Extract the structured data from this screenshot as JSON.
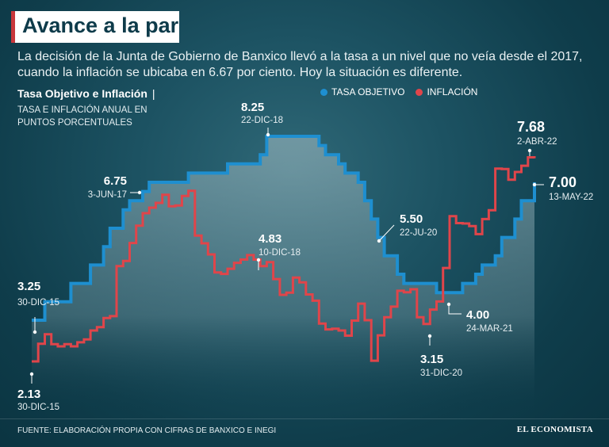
{
  "header": {
    "title": "Avance a la par",
    "subtitle": "La decisión de la Junta de Gobierno de Banxico llevó a la tasa a un nivel que no veía desde el 2017, cuando la inflación se ubicaba en 6.67 por ciento. Hoy la situación es diferente."
  },
  "chart_header": {
    "title": "Tasa Objetivo e Inflación",
    "separator": "|",
    "subtitle": "TASA E INFLACIÓN ANUAL EN PUNTOS PORCENTUALES"
  },
  "legend": {
    "tasa": "TASA OBJETIVO",
    "inflacion": "INFLACIÓN"
  },
  "colors": {
    "tasa": "#1e8fd0",
    "inflacion": "#e0454a",
    "area": "#9fb9c0",
    "brand_accent": "#c8363b"
  },
  "footer": {
    "source": "FUENTE: ELABORACIÓN PROPIA CON CIFRAS DE BANXICO E INEGI",
    "brand": "EL ECONOMISTA"
  },
  "chart_data": {
    "type": "line",
    "title": "Tasa Objetivo e Inflación",
    "xlabel": "",
    "ylabel": "Puntos porcentuales",
    "x_range": [
      "2015-12",
      "2022-05"
    ],
    "ylim": [
      1.5,
      9
    ],
    "grid": false,
    "series": [
      {
        "name": "TASA OBJETIVO",
        "style": "step-area",
        "x": [
          "2015-12",
          "2016-02",
          "2016-06",
          "2016-07",
          "2016-09",
          "2016-11",
          "2016-12",
          "2017-02",
          "2017-03",
          "2017-05",
          "2017-06",
          "2017-12",
          "2018-06",
          "2018-11",
          "2018-12",
          "2019-08",
          "2019-09",
          "2019-10",
          "2019-11",
          "2019-12",
          "2020-02",
          "2020-03",
          "2020-04",
          "2020-05",
          "2020-06",
          "2020-08",
          "2020-09",
          "2020-10",
          "2021-02",
          "2021-03",
          "2021-06",
          "2021-08",
          "2021-09",
          "2021-11",
          "2021-12",
          "2022-02",
          "2022-03",
          "2022-05"
        ],
        "values": [
          3.25,
          3.75,
          4.25,
          4.25,
          4.75,
          5.25,
          5.75,
          6.25,
          6.5,
          6.75,
          7.0,
          7.25,
          7.5,
          7.75,
          8.25,
          8.0,
          7.75,
          7.75,
          7.5,
          7.25,
          7.0,
          6.5,
          6.0,
          5.5,
          5.0,
          4.5,
          4.25,
          4.25,
          4.0,
          4.0,
          4.25,
          4.5,
          4.75,
          5.0,
          5.5,
          6.0,
          6.5,
          7.0
        ]
      },
      {
        "name": "INFLACIÓN",
        "style": "step-line",
        "x": [
          "2015-12",
          "2016-01",
          "2016-02",
          "2016-03",
          "2016-04",
          "2016-05",
          "2016-06",
          "2016-07",
          "2016-08",
          "2016-09",
          "2016-10",
          "2016-11",
          "2016-12",
          "2017-01",
          "2017-02",
          "2017-03",
          "2017-04",
          "2017-05",
          "2017-06",
          "2017-07",
          "2017-08",
          "2017-09",
          "2017-10",
          "2017-11",
          "2017-12",
          "2018-01",
          "2018-02",
          "2018-03",
          "2018-04",
          "2018-05",
          "2018-06",
          "2018-07",
          "2018-08",
          "2018-09",
          "2018-10",
          "2018-11",
          "2018-12",
          "2019-01",
          "2019-02",
          "2019-03",
          "2019-04",
          "2019-05",
          "2019-06",
          "2019-07",
          "2019-08",
          "2019-09",
          "2019-10",
          "2019-11",
          "2019-12",
          "2020-01",
          "2020-02",
          "2020-03",
          "2020-04",
          "2020-05",
          "2020-06",
          "2020-07",
          "2020-08",
          "2020-09",
          "2020-10",
          "2020-11",
          "2020-12",
          "2021-01",
          "2021-02",
          "2021-03",
          "2021-04",
          "2021-05",
          "2021-06",
          "2021-07",
          "2021-08",
          "2021-09",
          "2021-10",
          "2021-11",
          "2021-12",
          "2022-01",
          "2022-02",
          "2022-03",
          "2022-04",
          "2022-05"
        ],
        "values": [
          2.13,
          2.61,
          2.87,
          2.6,
          2.54,
          2.6,
          2.54,
          2.65,
          2.73,
          2.97,
          3.06,
          3.31,
          3.36,
          4.72,
          4.86,
          5.35,
          5.82,
          6.16,
          6.31,
          6.44,
          6.66,
          6.35,
          6.37,
          6.63,
          6.77,
          5.55,
          5.34,
          5.04,
          4.55,
          4.51,
          4.65,
          4.81,
          4.9,
          5.02,
          4.9,
          4.72,
          4.83,
          4.37,
          3.94,
          4.0,
          4.41,
          4.28,
          3.95,
          3.78,
          3.16,
          3.0,
          3.02,
          2.97,
          2.83,
          3.24,
          3.7,
          3.25,
          2.15,
          2.84,
          3.33,
          3.62,
          4.05,
          4.01,
          4.09,
          3.33,
          3.15,
          3.54,
          3.76,
          4.67,
          6.08,
          5.89,
          5.88,
          5.81,
          5.59,
          6.0,
          6.24,
          7.37,
          7.36,
          7.07,
          7.28,
          7.45,
          7.68,
          7.65
        ]
      }
    ],
    "annotations": [
      {
        "series": "TASA OBJETIVO",
        "value": "3.25",
        "date": "30-DIC-15"
      },
      {
        "series": "TASA OBJETIVO",
        "value": "6.75",
        "date": "3-JUN-17"
      },
      {
        "series": "TASA OBJETIVO",
        "value": "8.25",
        "date": "22-DIC-18"
      },
      {
        "series": "TASA OBJETIVO",
        "value": "5.50",
        "date": "22-JU-20"
      },
      {
        "series": "TASA OBJETIVO",
        "value": "4.00",
        "date": "24-MAR-21"
      },
      {
        "series": "TASA OBJETIVO",
        "value": "7.00",
        "date": "13-MAY-22"
      },
      {
        "series": "INFLACIÓN",
        "value": "2.13",
        "date": "30-DIC-15"
      },
      {
        "series": "INFLACIÓN",
        "value": "4.83",
        "date": "10-DIC-18"
      },
      {
        "series": "INFLACIÓN",
        "value": "3.15",
        "date": "31-DIC-20"
      },
      {
        "series": "INFLACIÓN",
        "value": "7.68",
        "date": "2-ABR-22"
      }
    ]
  }
}
